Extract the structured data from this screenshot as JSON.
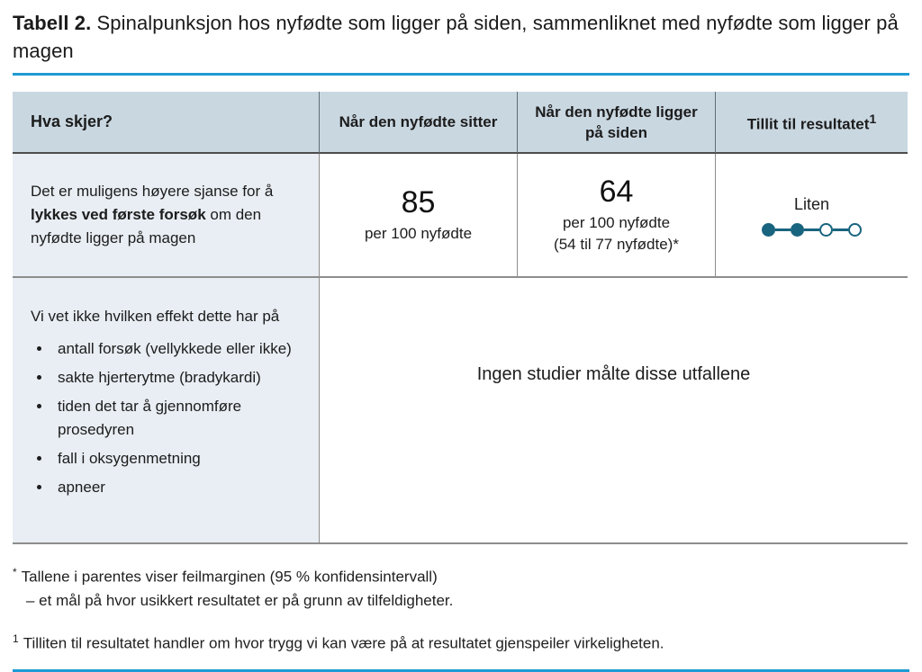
{
  "title": {
    "prefix": "Tabell 2.",
    "text": " Spinalpunksjon hos nyfødte som ligger på siden, sammenliknet med nyfødte som ligger på magen"
  },
  "table": {
    "headers": {
      "what": "Hva skjer?",
      "col_sitter": "Når den nyfødte sitter",
      "col_siden": "Når den nyfødte ligger på siden",
      "col_tillit": "Tillit til resultatet",
      "col_tillit_sup": "1"
    },
    "row1": {
      "outcome_pre": "Det er muligens høyere sjanse for å ",
      "outcome_bold": "lykkes ved første forsøk",
      "outcome_post": " om den nyfødte ligger på magen",
      "sitter_value": "85",
      "sitter_unit": "per 100 nyfødte",
      "siden_value": "64",
      "siden_unit": "per 100 nyfødte",
      "siden_ci": "(54 til 77 nyfødte)*",
      "confidence_label": "Liten",
      "confidence_filled": 2,
      "confidence_total": 4
    },
    "row2": {
      "intro": "Vi vet ikke hvilken effekt dette har på",
      "bullets": [
        "antall forsøk (vellykkede eller ikke)",
        "sakte hjerterytme (bradykardi)",
        "tiden det tar å gjennomføre prosedyren",
        "fall i oksygenmetning",
        "apneer"
      ],
      "no_studies": "Ingen studier målte disse utfallene"
    }
  },
  "footnotes": {
    "f1_marker": "*",
    "f1_line1": "Tallene i parentes viser feilmarginen (95 % konfidensintervall)",
    "f1_line2": "– et mål på hvor usikkert resultatet er på grunn av tilfeldigheter.",
    "f2_marker": "1",
    "f2_text": "Tilliten til resultatet handler om hvor trygg vi kan være på at resultatet gjenspeiler virkeligheten."
  },
  "colors": {
    "accent_blue": "#1e9bd4",
    "teal": "#19647f",
    "header_bg": "#c9d7e1",
    "cell_bg": "#e9eef4"
  }
}
